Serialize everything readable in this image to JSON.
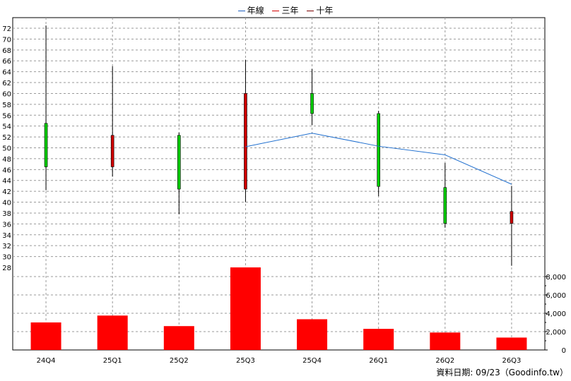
{
  "legend": [
    {
      "label": "年線",
      "color": "#1f5fbf"
    },
    {
      "label": "三年",
      "color": "#d40000"
    },
    {
      "label": "十年",
      "color": "#7a0000"
    }
  ],
  "source_text": "資料日期: 09/23（Goodinfo.tw）",
  "colors": {
    "up": "#00cc00",
    "down": "#cc0000",
    "volume": "#ff0000",
    "line": "#1f6fcf",
    "grid": "#999999"
  },
  "chart_data": {
    "type": "candlestick+bar",
    "categories": [
      "24Q4",
      "25Q1",
      "25Q2",
      "25Q3",
      "25Q4",
      "26Q1",
      "26Q2",
      "26Q3"
    ],
    "price_axis": {
      "min": 28,
      "max": 72,
      "ticks": [
        28,
        30,
        32,
        34,
        36,
        38,
        40,
        42,
        44,
        46,
        48,
        50,
        52,
        54,
        56,
        58,
        60,
        62,
        64,
        66,
        68,
        70,
        72
      ]
    },
    "candles": [
      {
        "open": 46.5,
        "close": 54.5,
        "high": 72.5,
        "low": 42.2
      },
      {
        "open": 52.3,
        "close": 46.5,
        "high": 65.0,
        "low": 44.7
      },
      {
        "open": 42.4,
        "close": 52.3,
        "high": 52.8,
        "low": 37.8
      },
      {
        "open": 60.0,
        "close": 42.4,
        "high": 66.2,
        "low": 40.0
      },
      {
        "open": 56.3,
        "close": 60.0,
        "high": 64.5,
        "low": 54.2
      },
      {
        "open": 42.9,
        "close": 56.3,
        "high": 56.8,
        "low": 41.1
      },
      {
        "open": 36.1,
        "close": 42.7,
        "high": 47.2,
        "low": 35.3
      },
      {
        "open": 38.3,
        "close": 36.1,
        "high": 43.0,
        "low": 28.3
      }
    ],
    "series": [
      {
        "name": "年線",
        "values": [
          null,
          null,
          null,
          50.2,
          52.7,
          50.3,
          48.7,
          43.3
        ]
      }
    ],
    "volume_axis": {
      "min": 0,
      "max": 9000,
      "ticks": [
        0,
        2000,
        4000,
        6000,
        8000
      ],
      "tick_labels": [
        "0",
        "2,000",
        "4,000",
        "6,000",
        "8,000"
      ]
    },
    "volume": [
      3000,
      3750,
      2600,
      9150,
      3350,
      2300,
      1900,
      1350
    ]
  }
}
